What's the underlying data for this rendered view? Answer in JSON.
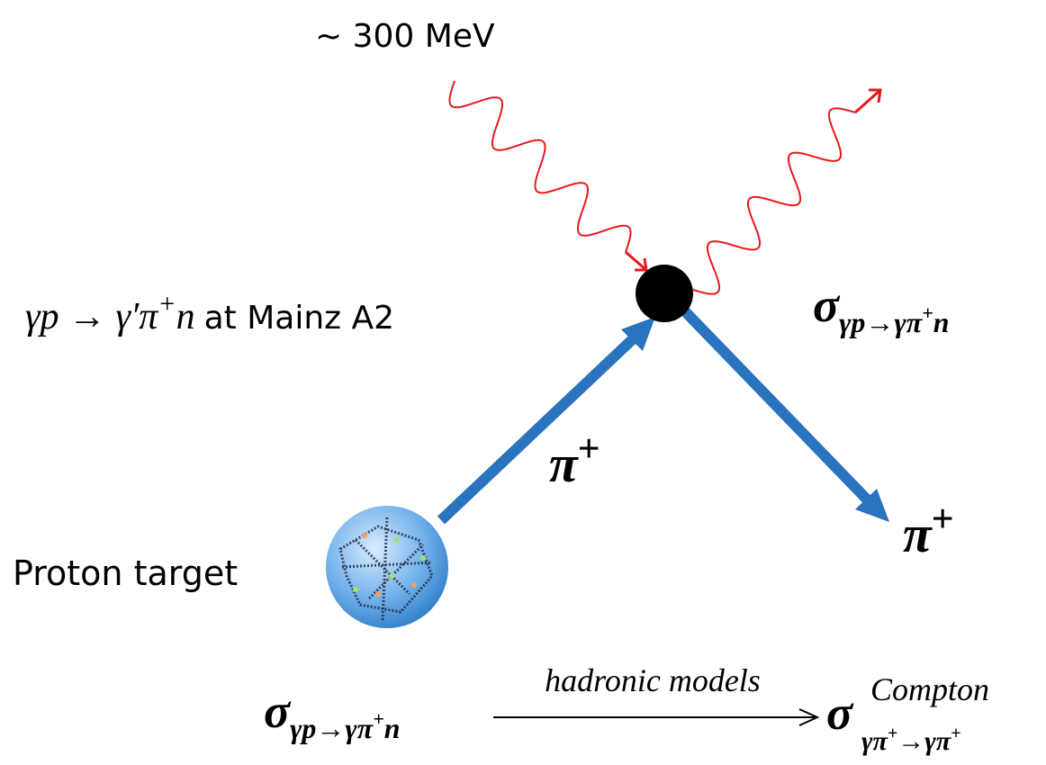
{
  "header": {
    "energy": "~ 300 MeV"
  },
  "reaction": {
    "lhs": "γp → γ′π",
    "charge": "+",
    "rest": "n",
    "place": "at Mainz A2"
  },
  "cross_section": {
    "symbol": "σ",
    "sub": "γp→γπ",
    "charge": "+",
    "rest": "n"
  },
  "pion_in": {
    "symbol": "π",
    "charge": "+"
  },
  "pion_out": {
    "symbol": "π",
    "charge": "+"
  },
  "target": {
    "label": "Proton target"
  },
  "equation": {
    "left": {
      "symbol": "σ",
      "sub": "γp→γπ",
      "charge": "+",
      "rest": "n"
    },
    "arrow_label": "hadronic models",
    "right": {
      "symbol": "σ",
      "sup": "Compton",
      "sub_a": "γπ",
      "charge_a": "+",
      "sub_b": "→γπ",
      "charge_b": "+"
    }
  }
}
